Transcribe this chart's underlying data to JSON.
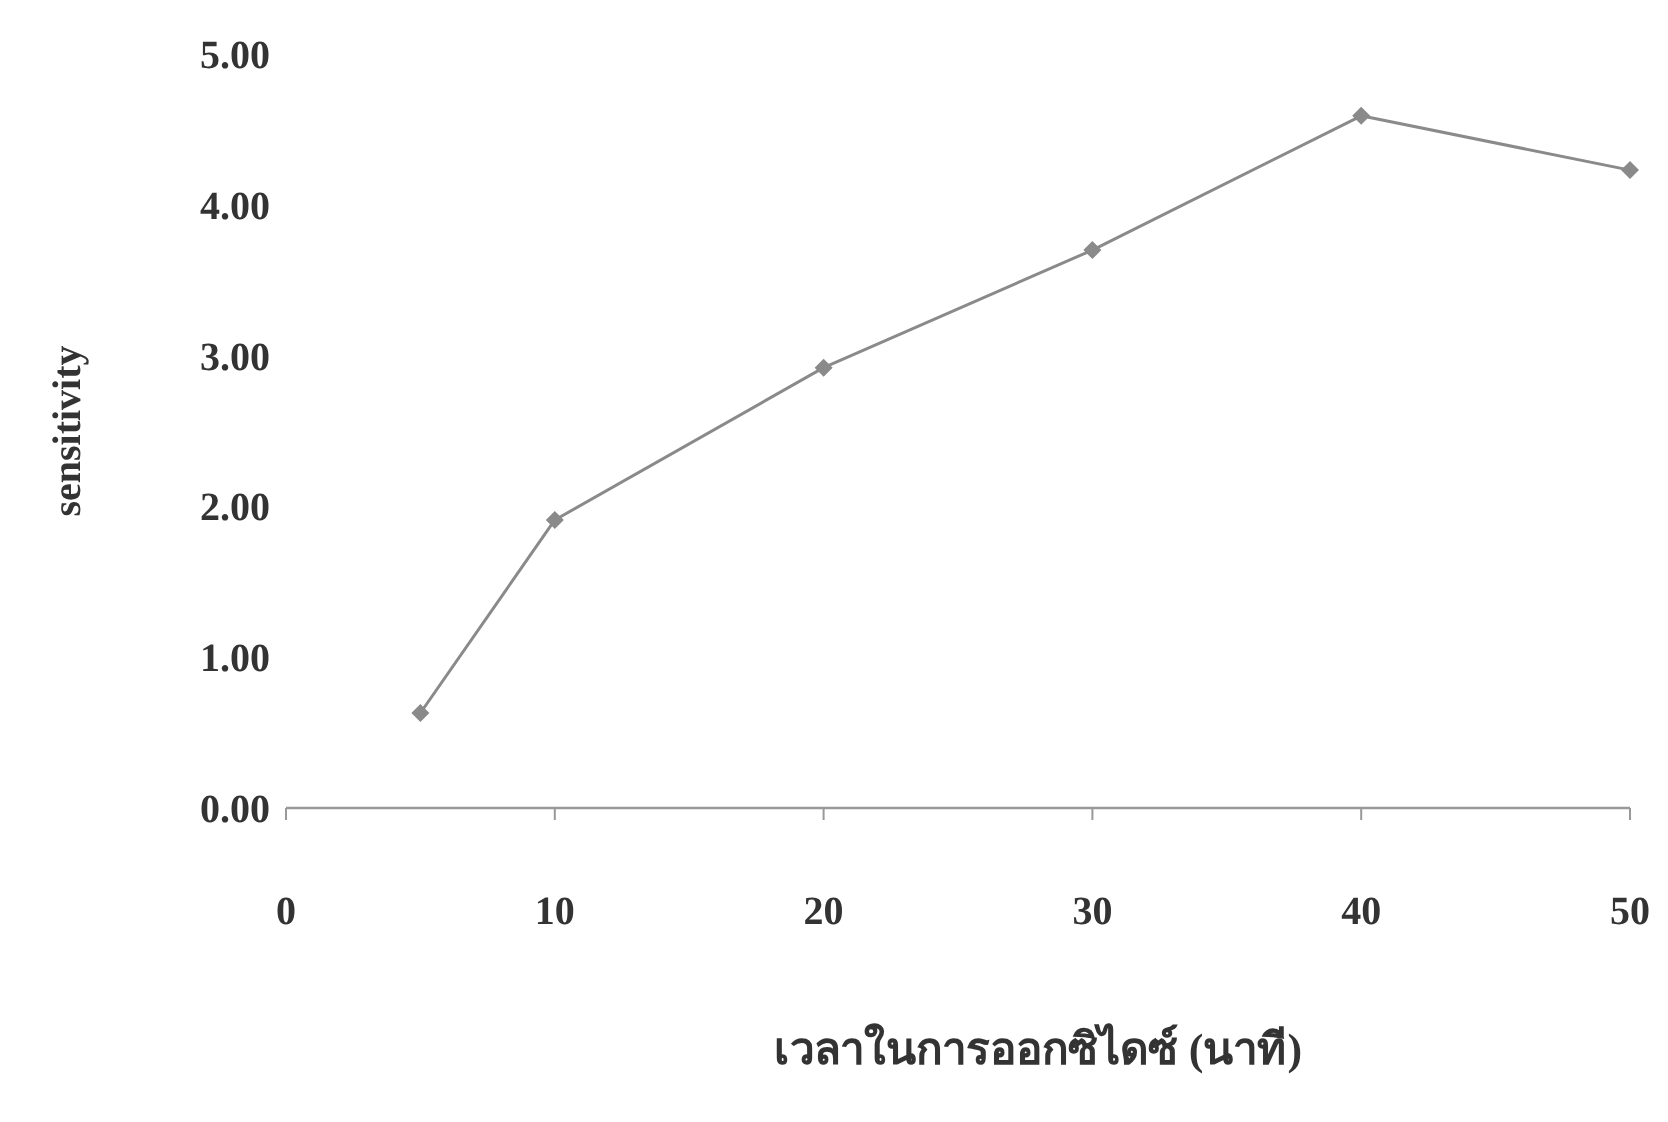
{
  "chart_data": {
    "type": "line",
    "xlabel": "เวลาในการออกซิไดซ์ (นาที)",
    "ylabel": "sensitivity",
    "x": [
      5,
      10,
      20,
      30,
      40,
      50
    ],
    "series": [
      {
        "color": "#8a8a8a",
        "values": [
          0.63,
          1.91,
          2.92,
          3.7,
          4.59,
          4.23
        ]
      }
    ],
    "xlim": [
      0,
      50
    ],
    "xticks": [
      0,
      10,
      20,
      30,
      40,
      50
    ],
    "ylim": [
      0,
      5
    ],
    "yticks": [
      {
        "value": 0,
        "label": "0.00"
      },
      {
        "value": 1,
        "label": "1.00"
      },
      {
        "value": 2,
        "label": "2.00"
      },
      {
        "value": 3,
        "label": "3.00"
      },
      {
        "value": 4,
        "label": "4.00"
      },
      {
        "value": 5,
        "label": "5.00"
      }
    ],
    "marker": "diamond",
    "grid": false
  }
}
